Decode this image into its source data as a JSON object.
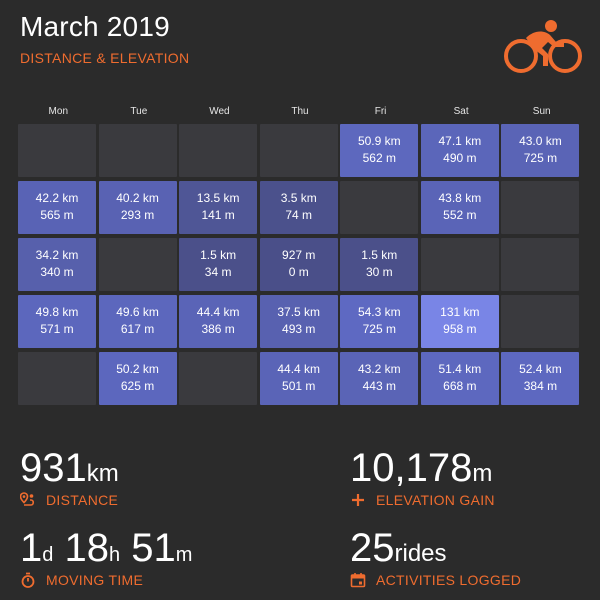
{
  "header": {
    "title": "March 2019",
    "subtitle": "DISTANCE & ELEVATION",
    "logo_icon": "cyclist-icon"
  },
  "colors": {
    "accent": "#ef6c2f",
    "background": "#2b2b2b",
    "empty_cell": "#3a3a3e",
    "cell_low": "#4a4f88",
    "cell_high": "#7985e6"
  },
  "weekdays": [
    "Mon",
    "Tue",
    "Wed",
    "Thu",
    "Fri",
    "Sat",
    "Sun"
  ],
  "calendar": {
    "weeks": [
      [
        null,
        null,
        null,
        null,
        {
          "distance": "50.9 km",
          "elevation": "562 m",
          "km": 50.9
        },
        {
          "distance": "47.1 km",
          "elevation": "490 m",
          "km": 47.1
        },
        {
          "distance": "43.0 km",
          "elevation": "725 m",
          "km": 43.0
        }
      ],
      [
        {
          "distance": "42.2 km",
          "elevation": "565 m",
          "km": 42.2
        },
        {
          "distance": "40.2 km",
          "elevation": "293 m",
          "km": 40.2
        },
        {
          "distance": "13.5 km",
          "elevation": "141 m",
          "km": 13.5
        },
        {
          "distance": "3.5 km",
          "elevation": "74 m",
          "km": 3.5
        },
        null,
        {
          "distance": "43.8 km",
          "elevation": "552 m",
          "km": 43.8
        },
        null
      ],
      [
        {
          "distance": "34.2 km",
          "elevation": "340 m",
          "km": 34.2
        },
        null,
        {
          "distance": "1.5 km",
          "elevation": "34 m",
          "km": 1.5
        },
        {
          "distance": "927 m",
          "elevation": "0 m",
          "km": 0.927
        },
        {
          "distance": "1.5 km",
          "elevation": "30 m",
          "km": 1.5
        },
        null,
        null
      ],
      [
        {
          "distance": "49.8 km",
          "elevation": "571 m",
          "km": 49.8
        },
        {
          "distance": "49.6 km",
          "elevation": "617 m",
          "km": 49.6
        },
        {
          "distance": "44.4 km",
          "elevation": "386 m",
          "km": 44.4
        },
        {
          "distance": "37.5 km",
          "elevation": "493 m",
          "km": 37.5
        },
        {
          "distance": "54.3 km",
          "elevation": "725 m",
          "km": 54.3
        },
        {
          "distance": "131 km",
          "elevation": "958 m",
          "km": 131,
          "highlight": true
        },
        null
      ],
      [
        null,
        {
          "distance": "50.2 km",
          "elevation": "625 m",
          "km": 50.2
        },
        null,
        {
          "distance": "44.4 km",
          "elevation": "501 m",
          "km": 44.4
        },
        {
          "distance": "43.2 km",
          "elevation": "443 m",
          "km": 43.2
        },
        {
          "distance": "51.4 km",
          "elevation": "668 m",
          "km": 51.4
        },
        {
          "distance": "52.4 km",
          "elevation": "384 m",
          "km": 52.4
        }
      ]
    ]
  },
  "stats": {
    "distance": {
      "value": "931",
      "unit": "km",
      "label": "DISTANCE",
      "icon": "route-pin-icon"
    },
    "elevation": {
      "value": "10,178",
      "unit": "m",
      "label": "ELEVATION GAIN",
      "icon": "plus-icon"
    },
    "moving_time": {
      "days": "1",
      "days_unit": "d",
      "hours": "18",
      "hours_unit": "h",
      "minutes": "51",
      "minutes_unit": "m",
      "label": "MOVING TIME",
      "icon": "stopwatch-icon"
    },
    "activities": {
      "value": "25",
      "unit": "rides",
      "label": "ACTIVITIES LOGGED",
      "icon": "calendar-icon"
    }
  }
}
